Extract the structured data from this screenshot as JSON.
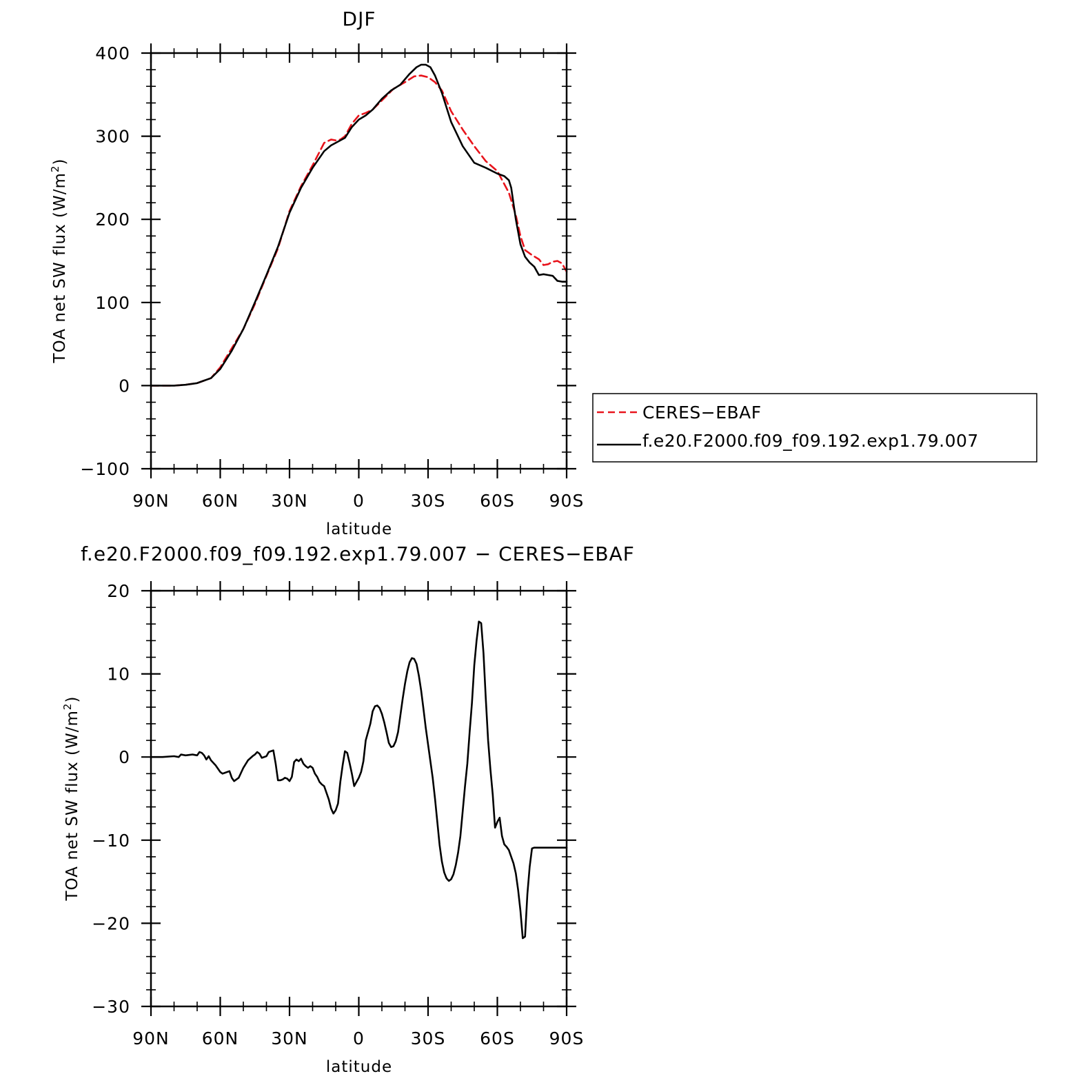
{
  "chart_data": [
    {
      "type": "line",
      "title": "DJF",
      "xlabel": "latitude",
      "ylabel": "TOA net SW flux (W/m²)",
      "ylabel_parts": {
        "main": "TOA net SW flux (W/m",
        "sup": "2",
        "tail": ")"
      },
      "x_direction": "90N to 90S (positive = north)",
      "xlim": [
        90,
        -90
      ],
      "ylim": [
        -100,
        400
      ],
      "xticks": [
        90,
        60,
        30,
        0,
        -30,
        -60,
        -90
      ],
      "xtick_labels": [
        "90N",
        "60N",
        "30N",
        "0",
        "30S",
        "60S",
        "90S"
      ],
      "yticks": [
        -100,
        0,
        100,
        200,
        300,
        400
      ],
      "ytick_labels": [
        "−100",
        "0",
        "100",
        "200",
        "300",
        "400"
      ],
      "legend_placement": "right, outside plot",
      "series": [
        {
          "name": "CERES−EBAF",
          "color": "#e8141c",
          "dash": "dashed",
          "x": [
            90,
            85,
            80,
            75,
            70,
            67,
            64,
            60,
            55,
            50,
            45,
            40,
            35,
            30,
            25,
            20,
            15,
            12,
            10,
            8,
            6,
            3,
            0,
            -3,
            -6,
            -10,
            -15,
            -20,
            -24,
            -27,
            -30,
            -33,
            -36,
            -40,
            -45,
            -50,
            -55,
            -60,
            -65,
            -68,
            -70,
            -72,
            -75,
            -78,
            -80,
            -82,
            -84,
            -86,
            -88,
            -90
          ],
          "y": [
            0,
            0,
            0,
            1,
            3,
            6,
            9,
            22,
            45,
            68,
            98,
            132,
            165,
            210,
            240,
            265,
            292,
            296,
            295,
            296,
            300,
            315,
            325,
            328,
            332,
            343,
            357,
            365,
            372,
            373,
            371,
            365,
            355,
            330,
            308,
            288,
            270,
            258,
            232,
            205,
            180,
            163,
            157,
            152,
            145,
            146,
            149,
            150,
            147,
            137
          ]
        },
        {
          "name": "f.e20.F2000.f09_f09.192.exp1.79.007",
          "color": "#000000",
          "dash": "solid",
          "x": [
            90,
            85,
            80,
            75,
            70,
            67,
            64,
            60,
            55,
            50,
            45,
            40,
            35,
            30,
            25,
            20,
            15,
            12,
            10,
            8,
            6,
            3,
            0,
            -3,
            -6,
            -10,
            -14,
            -18,
            -22,
            -25,
            -27,
            -29,
            -31,
            -33,
            -36,
            -40,
            -45,
            -50,
            -55,
            -60,
            -63,
            -65,
            -66,
            -68,
            -70,
            -72,
            -74,
            -76,
            -78,
            -80,
            -82,
            -84,
            -86,
            -88,
            -90
          ],
          "y": [
            0,
            0,
            0,
            1,
            3,
            6,
            9,
            20,
            42,
            68,
            100,
            133,
            167,
            208,
            238,
            262,
            282,
            289,
            292,
            295,
            298,
            311,
            320,
            325,
            332,
            345,
            355,
            362,
            375,
            383,
            386,
            386,
            383,
            373,
            352,
            317,
            288,
            268,
            262,
            255,
            252,
            247,
            238,
            200,
            170,
            155,
            148,
            143,
            133,
            134,
            133,
            132,
            126,
            125,
            125
          ]
        }
      ]
    },
    {
      "type": "line",
      "title": "f.e20.F2000.f09_f09.192.exp1.79.007 − CERES−EBAF",
      "xlabel": "latitude",
      "ylabel": "TOA net SW flux (W/m²)",
      "ylabel_parts": {
        "main": "TOA net SW flux (W/m",
        "sup": "2",
        "tail": ")"
      },
      "xlim": [
        90,
        -90
      ],
      "ylim": [
        -30,
        20
      ],
      "xticks": [
        90,
        60,
        30,
        0,
        -30,
        -60,
        -90
      ],
      "xtick_labels": [
        "90N",
        "60N",
        "30N",
        "0",
        "30S",
        "60S",
        "90S"
      ],
      "yticks": [
        -30,
        -20,
        -10,
        0,
        10,
        20
      ],
      "ytick_labels": [
        "−30",
        "−20",
        "−10",
        "0",
        "10",
        "20"
      ],
      "series": [
        {
          "color": "#000000",
          "dash": "solid",
          "x": [
            90,
            85,
            80,
            78,
            77,
            75,
            72,
            70,
            69,
            68,
            67,
            66,
            65,
            64,
            62,
            60,
            59,
            58,
            56,
            55,
            54,
            52,
            50,
            48,
            46,
            45,
            44,
            43,
            42,
            40,
            39,
            38,
            37,
            36,
            35,
            34,
            33,
            32,
            31,
            30,
            29,
            28,
            27,
            26,
            25,
            24,
            23,
            22,
            21,
            20,
            19,
            18,
            17,
            16,
            15,
            14,
            13,
            12,
            11,
            10,
            9,
            8,
            7,
            6,
            5,
            4,
            3,
            2,
            1,
            0,
            -1,
            -2,
            -3,
            -4,
            -5,
            -6,
            -7,
            -8,
            -9,
            -10,
            -11,
            -12,
            -13,
            -14,
            -15,
            -16,
            -17,
            -18,
            -19,
            -20,
            -21,
            -22,
            -23,
            -24,
            -25,
            -26,
            -27,
            -28,
            -29,
            -30,
            -31,
            -32,
            -33,
            -34,
            -35,
            -36,
            -37,
            -38,
            -39,
            -40,
            -41,
            -42,
            -43,
            -44,
            -45,
            -46,
            -47,
            -48,
            -49,
            -50,
            -51,
            -52,
            -53,
            -54,
            -55,
            -56,
            -57,
            -58,
            -59,
            -60,
            -61,
            -62,
            -63,
            -64,
            -65,
            -66,
            -67,
            -68,
            -69,
            -70,
            -71,
            -72,
            -73,
            -74,
            -75,
            -76,
            -77,
            -78,
            -79,
            -80,
            -81,
            -82,
            -83,
            -84,
            -85,
            -86,
            -87,
            -88,
            -89,
            -90
          ],
          "y": [
            0.0,
            0.0,
            0.1,
            0.0,
            0.3,
            0.2,
            0.3,
            0.2,
            0.6,
            0.5,
            0.2,
            -0.3,
            0.1,
            -0.4,
            -1.0,
            -1.8,
            -2.0,
            -1.9,
            -1.7,
            -2.5,
            -2.9,
            -2.5,
            -1.3,
            -0.4,
            0.1,
            0.3,
            0.6,
            0.4,
            -0.1,
            0.1,
            0.6,
            0.7,
            0.8,
            -0.8,
            -2.8,
            -2.8,
            -2.7,
            -2.5,
            -2.6,
            -2.9,
            -2.4,
            -0.6,
            -0.3,
            -0.5,
            -0.2,
            -0.8,
            -1.1,
            -1.3,
            -1.1,
            -1.3,
            -2.0,
            -2.4,
            -3.0,
            -3.3,
            -3.5,
            -4.3,
            -5.1,
            -6.2,
            -6.8,
            -6.4,
            -5.6,
            -3.0,
            -1.0,
            0.7,
            0.5,
            -0.7,
            -2.0,
            -3.5,
            -3.0,
            -2.5,
            -1.8,
            -0.5,
            2.0,
            3.0,
            4.0,
            5.5,
            6.1,
            6.2,
            5.9,
            5.2,
            4.2,
            3.0,
            1.7,
            1.2,
            1.3,
            1.9,
            3.0,
            5.0,
            7.0,
            8.8,
            10.3,
            11.4,
            11.9,
            11.8,
            11.2,
            9.8,
            8.0,
            5.8,
            3.5,
            1.5,
            -0.5,
            -2.5,
            -5.0,
            -7.8,
            -10.6,
            -12.6,
            -13.9,
            -14.6,
            -14.9,
            -14.7,
            -14.1,
            -13.0,
            -11.5,
            -9.5,
            -6.5,
            -3.5,
            -0.8,
            3.0,
            6.5,
            11.0,
            14.0,
            16.3,
            16.1,
            12.5,
            7.0,
            2.0,
            -1.5,
            -4.5,
            -8.5,
            -7.8,
            -7.3,
            -9.5,
            -10.5,
            -10.8,
            -11.2,
            -12.0,
            -12.8,
            -14.0,
            -16.0,
            -18.5,
            -21.8,
            -21.6,
            -16.5,
            -13.2,
            -11.0,
            -10.9,
            -10.9,
            -10.9,
            -10.9,
            -10.9,
            -10.9,
            -10.9,
            -10.9,
            -10.9,
            -10.9,
            -10.9,
            -10.9,
            -10.9,
            -10.9,
            -10.9
          ]
        }
      ]
    }
  ]
}
